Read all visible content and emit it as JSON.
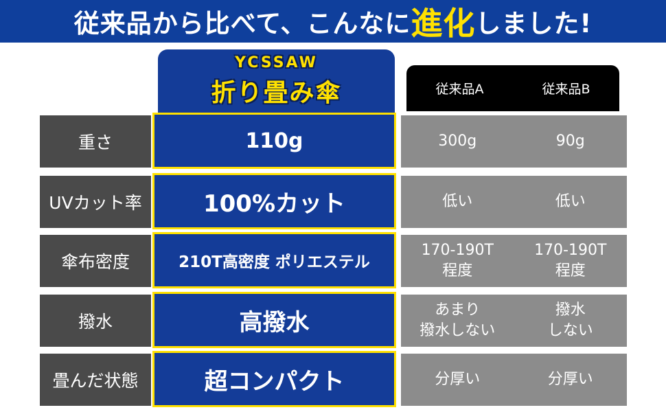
{
  "banner": {
    "title_part1": "従来品から比べて、こんなに",
    "title_highlight": "進化",
    "title_part2": "しました!"
  },
  "product": {
    "brand": "YCSSAW",
    "name": "折り畳み傘"
  },
  "competitors": [
    "従来品A",
    "従来品B"
  ],
  "rows": [
    {
      "label": "重さ",
      "ours": "110g",
      "a": "300g",
      "b": "90g"
    },
    {
      "label": "UVカット率",
      "ours": "100%カット",
      "a": "低い",
      "b": "低い"
    },
    {
      "label": "傘布密度",
      "ours": "210T高密度 ポリエステル",
      "a": "170-190T\n程度",
      "b": "170-190T\n程度"
    },
    {
      "label": "撥水",
      "ours": "高撥水",
      "a": "あまり\n撥水しない",
      "b": "撥水\nしない"
    },
    {
      "label": "畳んだ状態",
      "ours": "超コンパクト",
      "a": "分厚い",
      "b": "分厚い"
    }
  ],
  "colors": {
    "banner": "#0f3f9c",
    "accent": "#ffe100",
    "label_bg": "#4a4a4a",
    "ours_bg": "#143c98",
    "others_bg": "#8c8c8c"
  }
}
